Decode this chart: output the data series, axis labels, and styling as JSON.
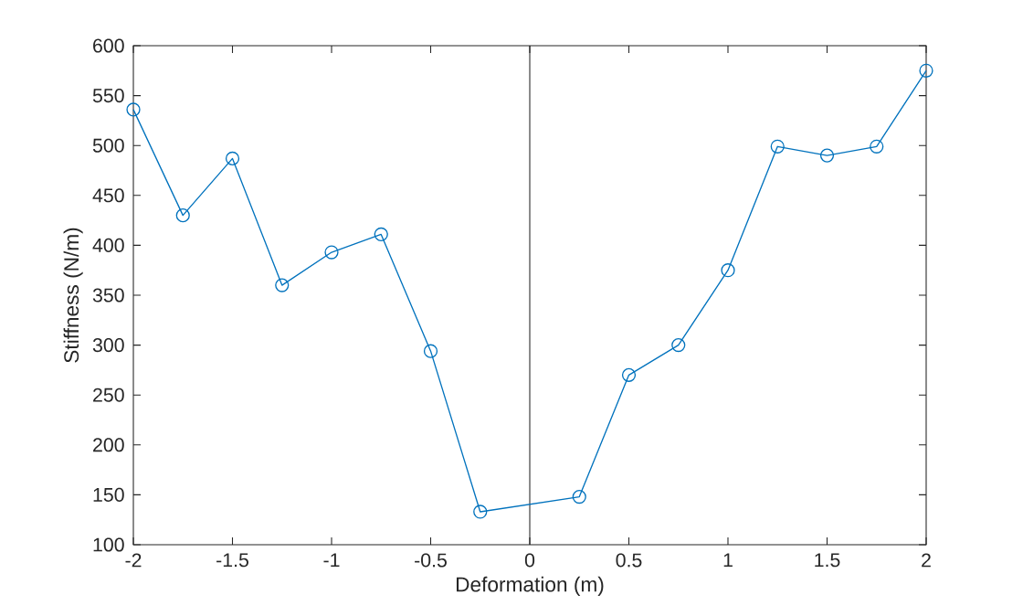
{
  "chart_data": {
    "type": "line",
    "xlabel": "Deformation (m)",
    "ylabel": "Stiffness (N/m)",
    "xlim": [
      -2,
      2
    ],
    "ylim": [
      100,
      600
    ],
    "xticks": [
      -2,
      -1.5,
      -1,
      -0.5,
      0,
      0.5,
      1,
      1.5,
      2
    ],
    "yticks": [
      100,
      150,
      200,
      250,
      300,
      350,
      400,
      450,
      500,
      550,
      600
    ],
    "grid": false,
    "marker": "circle",
    "line_style": "solid",
    "series": [
      {
        "color": "#0072bd",
        "x": [
          -2,
          -1.75,
          -1.5,
          -1.25,
          -1,
          -0.75,
          -0.5,
          -0.25,
          0.25,
          0.5,
          0.75,
          1,
          1.25,
          1.5,
          1.75,
          2
        ],
        "values": [
          536,
          430,
          487,
          360,
          393,
          411,
          294,
          133,
          148,
          270,
          300,
          375,
          499,
          490,
          499,
          575
        ]
      }
    ],
    "ref_lines": [
      {
        "axis": "x",
        "value": 0,
        "color": "#262626"
      }
    ]
  }
}
